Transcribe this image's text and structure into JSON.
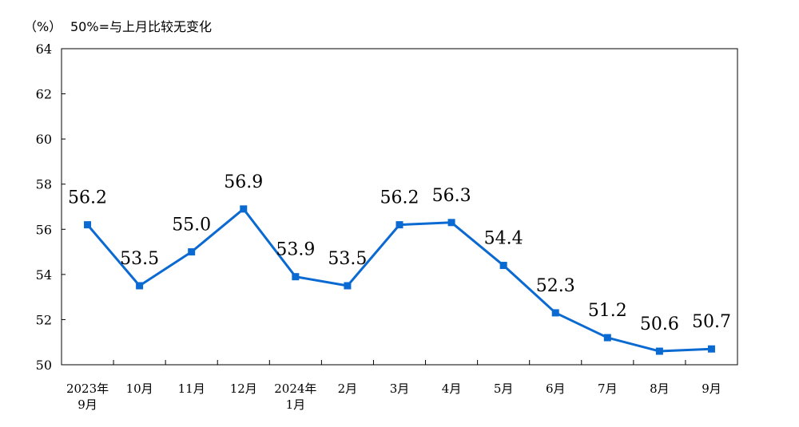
{
  "header": {
    "unit": "（%）",
    "note": "50%=与上月比较无变化"
  },
  "colors": {
    "series": "#0a6ad2"
  },
  "chart_data": {
    "type": "line",
    "title": "",
    "xlabel": "",
    "ylabel": "（%）",
    "ylim": [
      50,
      64
    ],
    "yticks": [
      50,
      52,
      54,
      56,
      58,
      60,
      62,
      64
    ],
    "grid": false,
    "legend": "none",
    "categories": [
      [
        "2023年",
        "9月"
      ],
      [
        "10月"
      ],
      [
        "11月"
      ],
      [
        "12月"
      ],
      [
        "2024年",
        "1月"
      ],
      [
        "2月"
      ],
      [
        "3月"
      ],
      [
        "4月"
      ],
      [
        "5月"
      ],
      [
        "6月"
      ],
      [
        "7月"
      ],
      [
        "8月"
      ],
      [
        "9月"
      ]
    ],
    "series": [
      {
        "values": [
          56.2,
          53.5,
          55.0,
          56.9,
          53.9,
          53.5,
          56.2,
          56.3,
          54.4,
          52.3,
          51.2,
          50.6,
          50.7
        ],
        "labels": [
          "56.2",
          "53.5",
          "55.0",
          "56.9",
          "53.9",
          "53.5",
          "56.2",
          "56.3",
          "54.4",
          "52.3",
          "51.2",
          "50.6",
          "50.7"
        ]
      }
    ]
  }
}
